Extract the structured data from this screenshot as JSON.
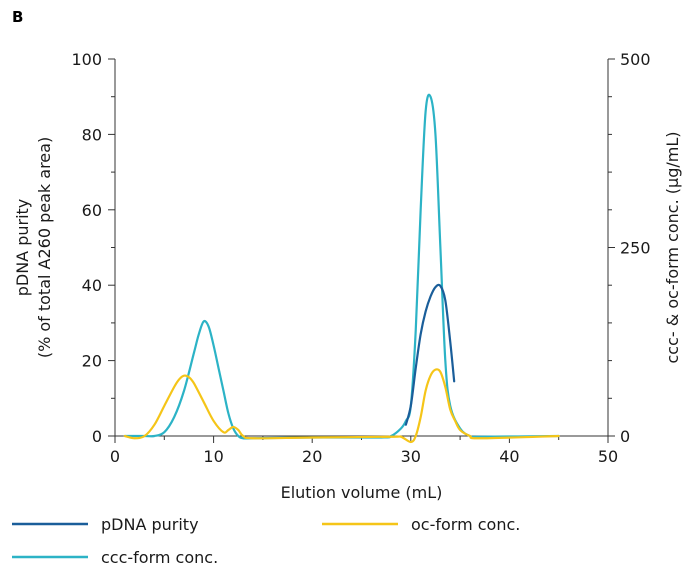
{
  "panel_label": "B",
  "chart_data": {
    "type": "line",
    "xlabel": "Elution volume (mL)",
    "ylabel_left": [
      "pDNA purity",
      "(% of total A260 peak area)"
    ],
    "ylabel_right": "ccc- & oc-form conc. (µg/mL)",
    "xlim": [
      0,
      50
    ],
    "ylim_left": [
      0,
      100
    ],
    "ylim_right": [
      0,
      500
    ],
    "x_ticks": [
      0,
      10,
      20,
      30,
      40,
      50
    ],
    "y_left_ticks": [
      0,
      20,
      40,
      60,
      80,
      100
    ],
    "y_right_ticks": [
      0,
      250,
      500
    ],
    "grid": false,
    "legend_position": "bottom",
    "series": [
      {
        "name": "pDNA purity",
        "color": "#1a5e9a",
        "axis": "left",
        "x": [
          29.5,
          30.0,
          30.5,
          31.0,
          31.5,
          32.0,
          32.5,
          33.0,
          33.5,
          34.0,
          34.4
        ],
        "y": [
          3,
          8,
          18,
          27,
          33,
          37,
          39.5,
          39.8,
          36,
          25,
          14.5
        ]
      },
      {
        "name": "oc-form conc.",
        "color": "#f5c518",
        "axis": "right",
        "x": [
          1.0,
          2.0,
          3.0,
          4.0,
          5.0,
          6.0,
          6.5,
          7.0,
          7.5,
          8.0,
          9.0,
          10.0,
          11.0,
          11.5,
          12.0,
          12.5,
          13.0,
          14.0,
          20.0,
          28.0,
          29.0,
          30.0,
          30.5,
          31.0,
          31.5,
          32.0,
          32.5,
          33.0,
          33.5,
          34.0,
          34.5,
          35.0,
          36.0,
          37.0,
          45.0
        ],
        "y": [
          0,
          -3,
          0,
          15,
          40,
          65,
          75,
          80,
          78,
          70,
          45,
          20,
          5,
          8,
          12,
          8,
          0,
          -3,
          -2,
          -1,
          -1,
          -8,
          0,
          25,
          60,
          80,
          88,
          85,
          65,
          35,
          20,
          8,
          0,
          -3,
          0
        ]
      },
      {
        "name": "ccc-form conc.",
        "color": "#2cb3c6",
        "axis": "right",
        "x": [
          1.0,
          3.0,
          4.0,
          5.0,
          6.0,
          7.0,
          8.0,
          8.5,
          9.0,
          9.5,
          10.0,
          10.5,
          11.0,
          11.5,
          12.0,
          12.5,
          13.0,
          14.0,
          20.0,
          27.0,
          28.0,
          29.0,
          29.5,
          30.0,
          30.5,
          31.0,
          31.5,
          32.0,
          32.5,
          33.0,
          33.5,
          34.0,
          35.0,
          36.0,
          37.0,
          45.0
        ],
        "y": [
          0,
          0,
          0,
          5,
          25,
          60,
          110,
          135,
          152,
          145,
          120,
          90,
          60,
          30,
          10,
          0,
          -3,
          -3,
          -2,
          -2,
          0,
          10,
          20,
          40,
          140,
          300,
          430,
          450,
          400,
          250,
          100,
          40,
          10,
          0,
          -1,
          0
        ]
      }
    ]
  }
}
